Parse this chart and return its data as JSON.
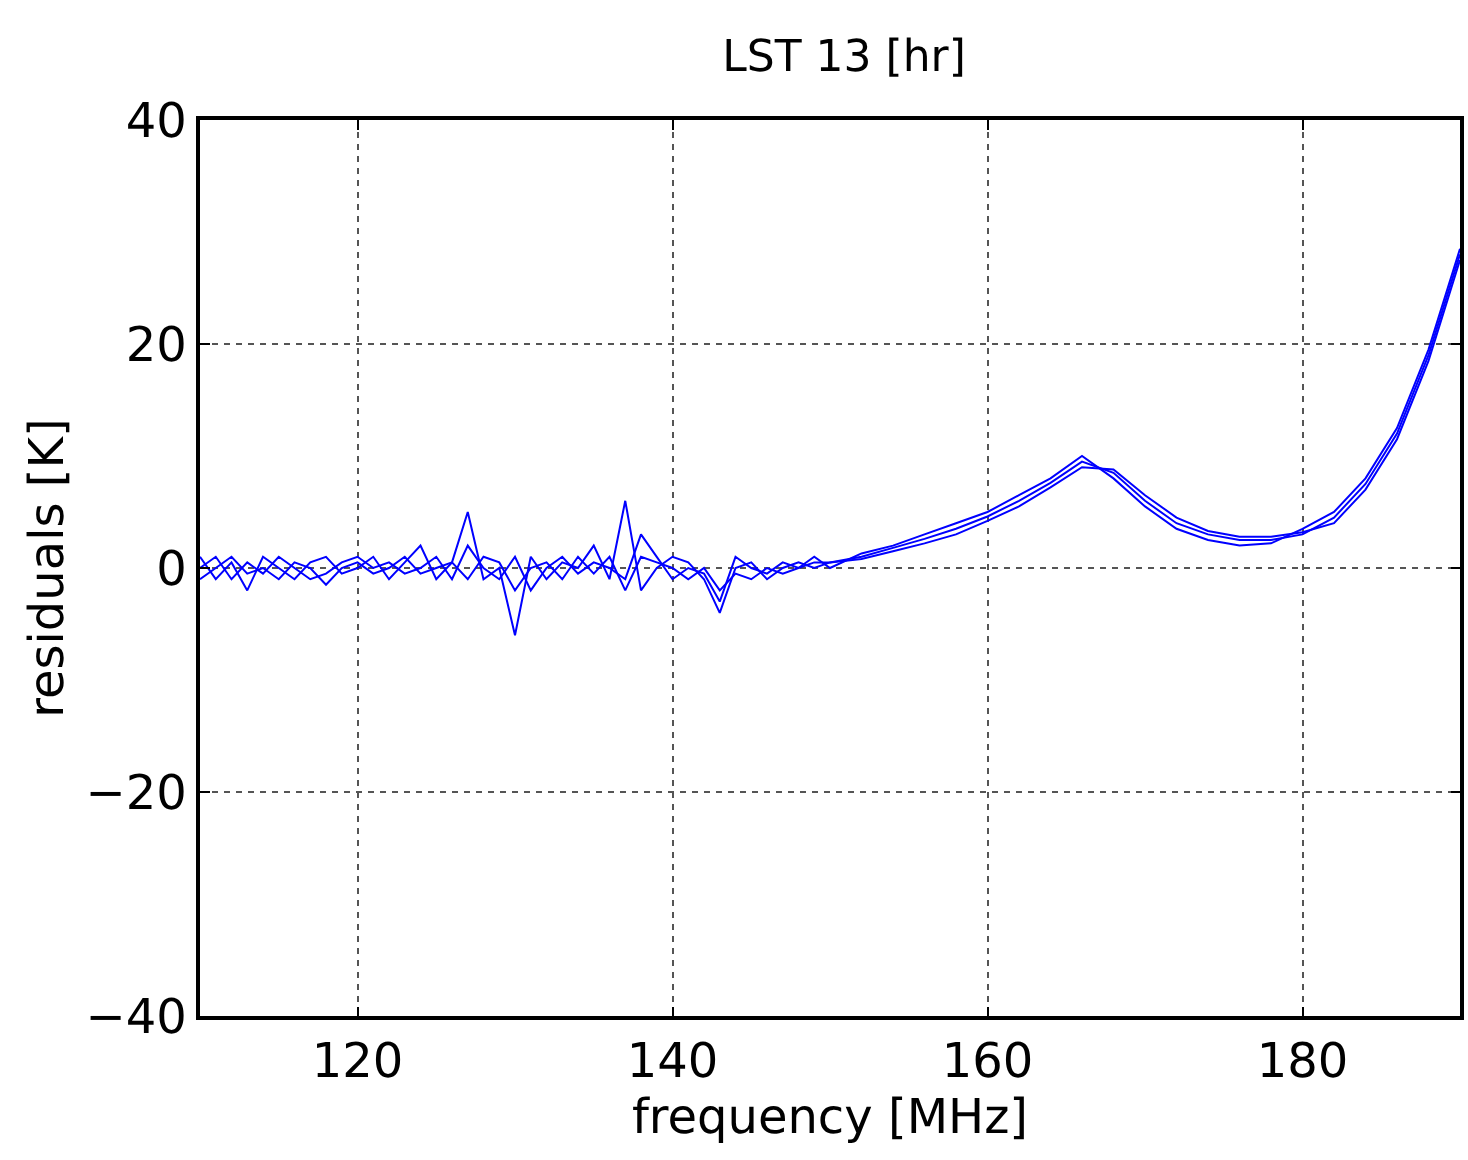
{
  "chart_data": {
    "type": "line",
    "title": "LST 13 [hr]",
    "xlabel": "frequency [MHz]",
    "ylabel": "residuals [K]",
    "x": [
      110,
      111,
      112,
      113,
      114,
      115,
      116,
      117,
      118,
      119,
      120,
      121,
      122,
      123,
      124,
      125,
      126,
      127,
      128,
      129,
      130,
      131,
      132,
      133,
      134,
      135,
      136,
      137,
      138,
      139,
      140,
      141,
      142,
      143,
      144,
      145,
      146,
      147,
      148,
      149,
      150,
      152,
      154,
      156,
      158,
      160,
      162,
      164,
      166,
      168,
      170,
      172,
      174,
      176,
      178,
      180,
      182,
      184,
      186,
      188,
      190
    ],
    "series": [
      {
        "color": "#0000ff",
        "values": [
          1,
          -1,
          0.5,
          -2,
          1,
          0,
          -1,
          0.5,
          1,
          -0.5,
          0,
          1,
          -1,
          0.5,
          2,
          -1,
          0.5,
          5,
          -1,
          0,
          -6,
          1,
          -1,
          0.5,
          0,
          2,
          -1,
          6,
          -2,
          0,
          1,
          0.5,
          -1,
          -4,
          0,
          0.5,
          -1,
          0,
          0.5,
          0,
          0.5,
          1,
          1.8,
          2.6,
          3.5,
          4.6,
          6,
          7.6,
          9.5,
          8.5,
          6,
          4,
          3,
          2.5,
          2.5,
          3,
          4.5,
          7.5,
          12,
          19,
          28
        ]
      },
      {
        "color": "#0000ff",
        "values": [
          0,
          1,
          -1,
          0.5,
          -0.5,
          1,
          0,
          -1,
          -0.5,
          0.5,
          1,
          0,
          0.5,
          -0.5,
          0,
          1,
          -1,
          2,
          0,
          -1,
          1,
          -2,
          0,
          1,
          -0.5,
          0.5,
          0,
          -1,
          3,
          1,
          -1,
          0,
          -0.5,
          -3,
          1,
          0,
          -0.5,
          0.5,
          0,
          1,
          0,
          1.3,
          2,
          3,
          4,
          5,
          6.5,
          8,
          10,
          8,
          5.5,
          3.5,
          2.5,
          2,
          2.2,
          3.5,
          5,
          8,
          12.5,
          19.5,
          28.5
        ]
      },
      {
        "color": "#0000ff",
        "values": [
          -1,
          0,
          1,
          -0.5,
          0,
          -1,
          0.5,
          0,
          -1.5,
          0,
          0.5,
          -0.5,
          0,
          1,
          -0.5,
          0,
          0.5,
          -1,
          1,
          0.5,
          -2,
          0,
          0.5,
          -1,
          1,
          -0.5,
          1,
          -2,
          1,
          0.5,
          0,
          -1,
          0,
          -2,
          -0.5,
          -1,
          0,
          -0.5,
          0,
          0.5,
          0.5,
          0.8,
          1.5,
          2.2,
          3,
          4.2,
          5.5,
          7.2,
          9,
          8.8,
          6.5,
          4.5,
          3.3,
          2.8,
          2.8,
          3.2,
          4,
          7,
          11.5,
          18.5,
          27.5
        ]
      }
    ],
    "xlim": [
      110,
      190
    ],
    "xticks": [
      120,
      140,
      160,
      180
    ],
    "ylim": [
      -40,
      40
    ],
    "yticks": [
      -40,
      -20,
      0,
      20,
      40
    ],
    "grid": true,
    "line_style": "solid",
    "marker": "none"
  }
}
